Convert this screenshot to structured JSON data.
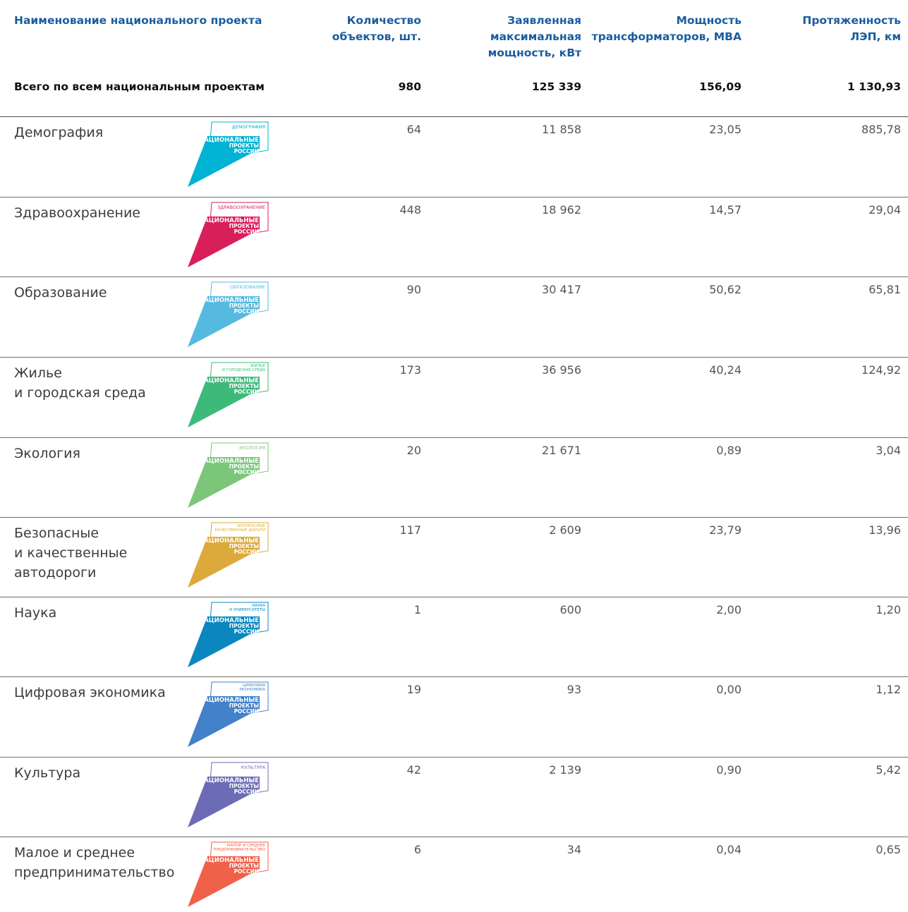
{
  "header": {
    "col_name": "Наименование национального проекта",
    "col_objects": [
      "Количество",
      "объектов, шт."
    ],
    "col_power": [
      "Заявленная",
      "максимальная",
      "мощность, кВт"
    ],
    "col_transformers": [
      "Мощность",
      "трансформаторов, МВА"
    ],
    "col_lines": [
      "Протяженность",
      "ЛЭП, км"
    ]
  },
  "total": {
    "label": "Всего по всем национальным проектам",
    "objects": "980",
    "power": "125 339",
    "transformers": "156,09",
    "lines": "1 130,93"
  },
  "logo_text": [
    "НАЦИОНАЛЬНЫЕ",
    "ПРОЕКТЫ",
    "РОССИИ"
  ],
  "rows": [
    {
      "name": [
        "Демография"
      ],
      "badge": [
        "ДЕМОГРАФИЯ"
      ],
      "color": "#00b2d3",
      "objects": "64",
      "power": "11 858",
      "transformers": "23,05",
      "lines": "885,78"
    },
    {
      "name": [
        "Здравоохранение"
      ],
      "badge": [
        "ЗДРАВООХРАНЕНИЕ"
      ],
      "color": "#d81f5a",
      "objects": "448",
      "power": "18 962",
      "transformers": "14,57",
      "lines": "29,04"
    },
    {
      "name": [
        "Образование"
      ],
      "badge": [
        "ОБРАЗОВАНИЕ"
      ],
      "color": "#56b9e0",
      "objects": "90",
      "power": "30 417",
      "transformers": "50,62",
      "lines": "65,81"
    },
    {
      "name": [
        "Жилье",
        "и городская среда"
      ],
      "badge": [
        "ЖИЛЬЕ",
        "И ГОРОДСКАЯ СРЕДА"
      ],
      "color": "#3dba7a",
      "objects": "173",
      "power": "36 956",
      "transformers": "40,24",
      "lines": "124,92"
    },
    {
      "name": [
        "Экология"
      ],
      "badge": [
        "ЭКОЛОГИЯ"
      ],
      "color": "#7cc67a",
      "objects": "20",
      "power": "21 671",
      "transformers": "0,89",
      "lines": "3,04"
    },
    {
      "name": [
        "Безопасные",
        "и качественные",
        "автодороги"
      ],
      "badge": [
        "БЕЗОПАСНЫЕ",
        "КАЧЕСТВЕННЫЕ ДОРОГИ"
      ],
      "color": "#dcaa3a",
      "objects": "117",
      "power": "2 609",
      "transformers": "23,79",
      "lines": "13,96"
    },
    {
      "name": [
        "Наука"
      ],
      "badge": [
        "НАУКА",
        "И УНИВЕРСИТЕТЫ"
      ],
      "color": "#0b86bf",
      "objects": "1",
      "power": "600",
      "transformers": "2,00",
      "lines": "1,20"
    },
    {
      "name": [
        "Цифровая экономика"
      ],
      "badge": [
        "ЦИФРОВАЯ",
        "ЭКОНОМИКА"
      ],
      "color": "#4381c9",
      "objects": "19",
      "power": "93",
      "transformers": "0,00",
      "lines": "1,12"
    },
    {
      "name": [
        "Культура"
      ],
      "badge": [
        "КУЛЬТУРА"
      ],
      "color": "#6c6bb5",
      "objects": "42",
      "power": "2 139",
      "transformers": "0,90",
      "lines": "5,42"
    },
    {
      "name": [
        "Малое и среднее",
        "предпринимательство"
      ],
      "badge": [
        "МАЛОЕ И СРЕДНЕЕ",
        "ПРЕДПРИНИМАТЕЛЬСТВО"
      ],
      "color": "#f0614a",
      "objects": "6",
      "power": "34",
      "transformers": "0,04",
      "lines": "0,65"
    }
  ]
}
